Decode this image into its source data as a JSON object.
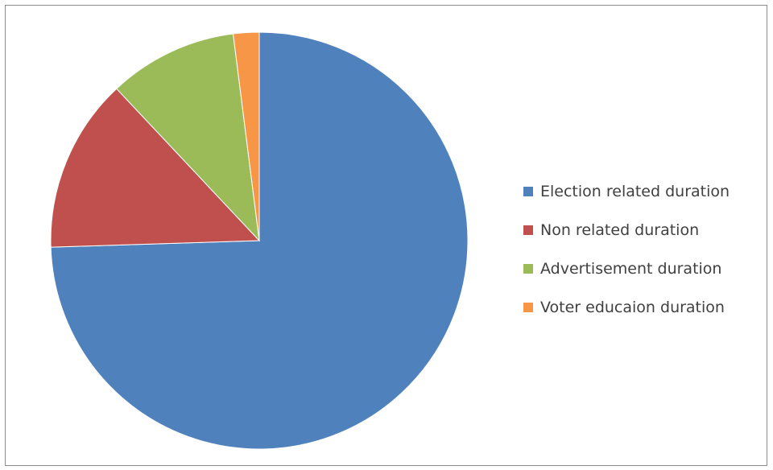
{
  "chart_data": {
    "type": "pie",
    "title": "",
    "start_direction": "top",
    "clockwise": true,
    "legend_position": "right",
    "slices": [
      {
        "label": "Election related duration",
        "value": 74.5,
        "color": "#4F81BD"
      },
      {
        "label": "Non related duration",
        "value": 13.5,
        "color": "#C0504D"
      },
      {
        "label": "Advertisement duration",
        "value": 10.0,
        "color": "#9BBB59"
      },
      {
        "label": "Voter educaion duration",
        "value": 2.0,
        "color": "#F79646"
      }
    ]
  }
}
